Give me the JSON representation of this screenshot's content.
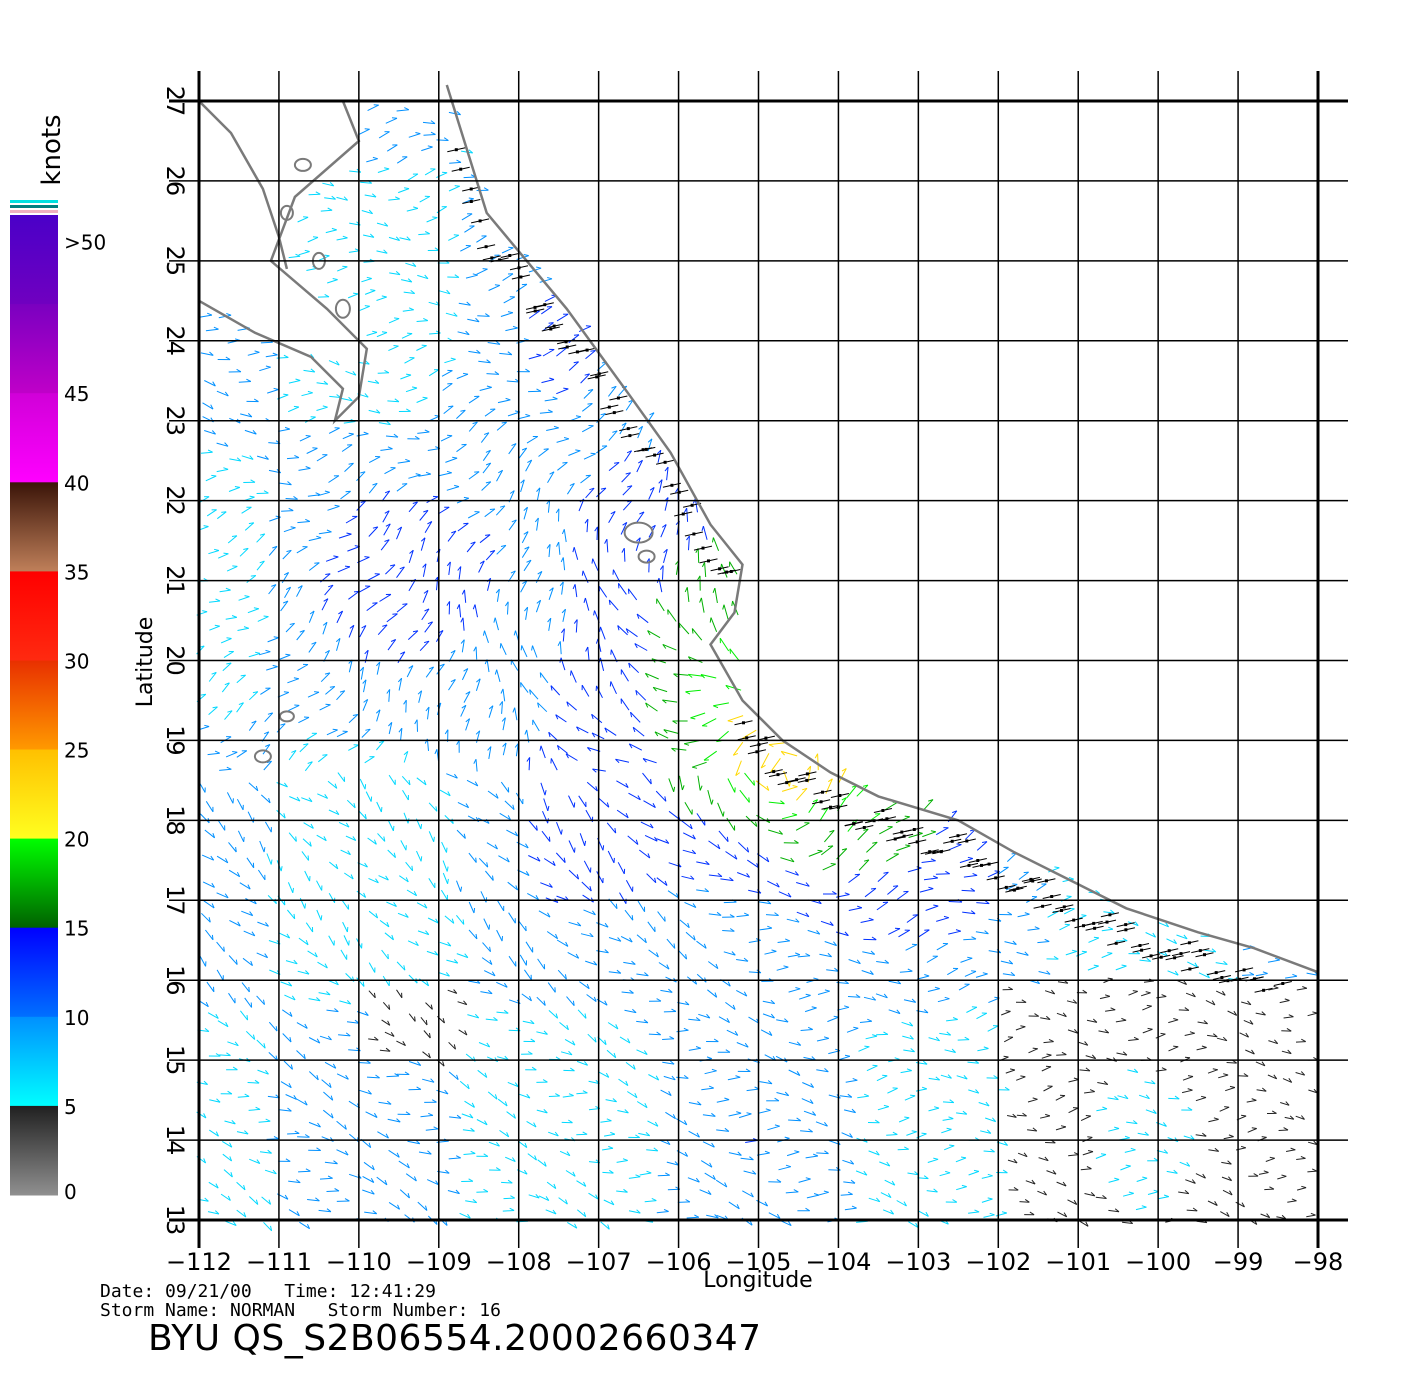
{
  "axes": {
    "xlabel": "Longitude",
    "ylabel": "Latitude",
    "lon_ticks": [
      "−112",
      "−111",
      "−110",
      "−109",
      "−108",
      "−107",
      "−106",
      "−105",
      "−104",
      "−103",
      "−102",
      "−101",
      "−100",
      "−99",
      "−98"
    ],
    "lat_ticks": [
      "13",
      "14",
      "15",
      "16",
      "17",
      "18",
      "19",
      "20",
      "21",
      "22",
      "23",
      "24",
      "25",
      "26",
      "27"
    ]
  },
  "colorbar": {
    "unit": "knots",
    "labels": [
      ">50",
      "45",
      "40",
      "35",
      "30",
      "25",
      "20",
      "15",
      "10",
      "5",
      "0"
    ],
    "bands": [
      {
        "from": 50,
        "to": 55,
        "colors": [
          "#4a00c8",
          "#7000c0"
        ]
      },
      {
        "from": 45,
        "to": 50,
        "colors": [
          "#7a00c0",
          "#c000c8"
        ]
      },
      {
        "from": 40,
        "to": 45,
        "colors": [
          "#d000d8",
          "#ff00ff"
        ]
      },
      {
        "from": 35,
        "to": 40,
        "colors": [
          "#3a1408",
          "#c0805a"
        ]
      },
      {
        "from": 30,
        "to": 35,
        "colors": [
          "#ff0000",
          "#ff2a10"
        ]
      },
      {
        "from": 25,
        "to": 30,
        "colors": [
          "#e83000",
          "#ff9a00"
        ]
      },
      {
        "from": 20,
        "to": 25,
        "colors": [
          "#ffc000",
          "#ffff20"
        ]
      },
      {
        "from": 15,
        "to": 20,
        "colors": [
          "#00ff00",
          "#006000"
        ]
      },
      {
        "from": 10,
        "to": 15,
        "colors": [
          "#0000ff",
          "#0070ff"
        ]
      },
      {
        "from": 5,
        "to": 10,
        "colors": [
          "#0090ff",
          "#00ffff"
        ]
      },
      {
        "from": 0,
        "to": 5,
        "colors": [
          "#202020",
          "#909090"
        ]
      }
    ]
  },
  "map": {
    "lon_range": [
      -112,
      -98
    ],
    "lat_range": [
      13,
      27
    ],
    "coast_color": "#7a7a7a",
    "grid_color": "#000000"
  },
  "info": {
    "line1": "Date: 09/21/00   Time: 12:41:29",
    "line2": "Storm Name: NORMAN   Storm Number: 16",
    "product": "BYU  QS_S2B06554.20002660347"
  }
}
